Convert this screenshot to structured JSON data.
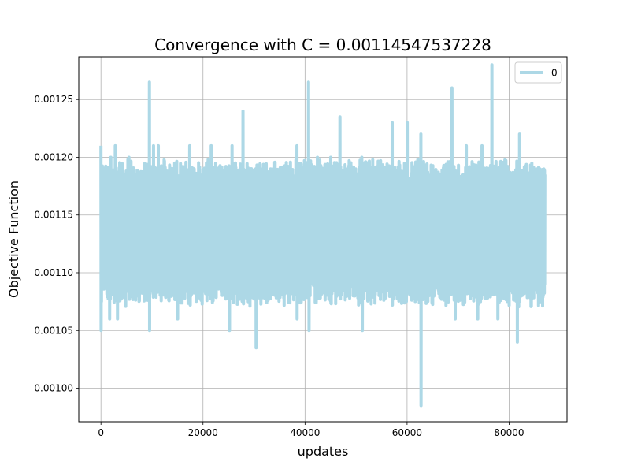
{
  "chart_data": {
    "type": "line",
    "title": "Convergence with C = 0.00114547537228",
    "xlabel": "updates",
    "ylabel": "Objective Function",
    "xlim": [
      -4350,
      91350
    ],
    "ylim": [
      0.000971,
      0.001287
    ],
    "xticks": [
      0,
      20000,
      40000,
      60000,
      80000
    ],
    "xtick_labels": [
      "0",
      "20000",
      "40000",
      "60000",
      "80000"
    ],
    "yticks": [
      0.001,
      0.00105,
      0.0011,
      0.00115,
      0.0012,
      0.00125
    ],
    "ytick_labels": [
      "0.00100",
      "0.00105",
      "0.00110",
      "0.00115",
      "0.00120",
      "0.00125"
    ],
    "grid": true,
    "legend_position": "top-right",
    "series": [
      {
        "name": "0",
        "color": "#add8e6",
        "x_range": [
          0,
          87000
        ],
        "band": [
          0.00109,
          0.00118
        ],
        "upper_spikes": [
          [
            0,
            0.00121
          ],
          [
            1900,
            0.0012
          ],
          [
            2800,
            0.00121
          ],
          [
            5500,
            0.0012
          ],
          [
            9500,
            0.001265
          ],
          [
            10300,
            0.00121
          ],
          [
            11200,
            0.00121
          ],
          [
            17400,
            0.00121
          ],
          [
            21600,
            0.00121
          ],
          [
            25700,
            0.00121
          ],
          [
            27800,
            0.00124
          ],
          [
            31300,
            0.00119
          ],
          [
            38400,
            0.00121
          ],
          [
            40700,
            0.001265
          ],
          [
            42400,
            0.0012
          ],
          [
            45000,
            0.0012
          ],
          [
            46800,
            0.001235
          ],
          [
            51100,
            0.0012
          ],
          [
            57100,
            0.00123
          ],
          [
            60000,
            0.00123
          ],
          [
            62700,
            0.00122
          ],
          [
            68800,
            0.00126
          ],
          [
            71600,
            0.00121
          ],
          [
            74700,
            0.00121
          ],
          [
            76600,
            0.00128
          ],
          [
            82000,
            0.00122
          ],
          [
            86000,
            0.00119
          ]
        ],
        "lower_spikes": [
          [
            0,
            0.00105
          ],
          [
            1700,
            0.00106
          ],
          [
            3200,
            0.00106
          ],
          [
            9500,
            0.00105
          ],
          [
            15000,
            0.00106
          ],
          [
            25200,
            0.00105
          ],
          [
            30400,
            0.001035
          ],
          [
            38400,
            0.00106
          ],
          [
            40800,
            0.00105
          ],
          [
            51200,
            0.00105
          ],
          [
            62700,
            0.000985
          ],
          [
            69400,
            0.00106
          ],
          [
            73800,
            0.00106
          ],
          [
            77800,
            0.00106
          ],
          [
            81600,
            0.00104
          ]
        ]
      }
    ]
  }
}
